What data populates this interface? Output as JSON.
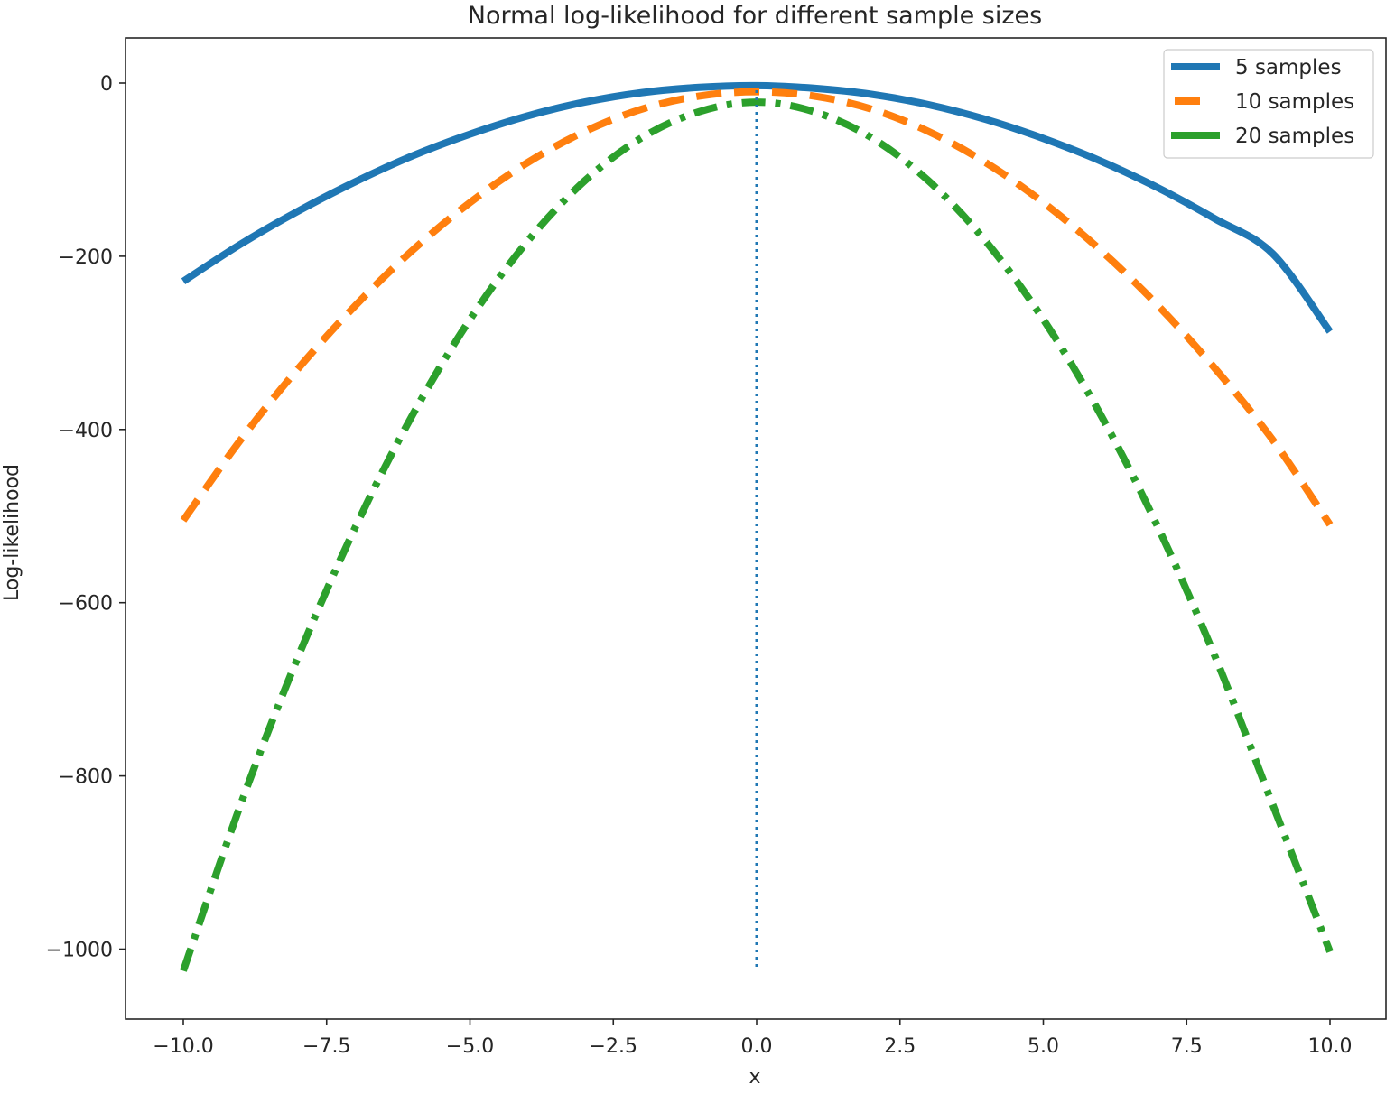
{
  "chart_data": {
    "type": "line",
    "title": "Normal log-likelihood for different sample sizes",
    "xlabel": "x",
    "ylabel": "Log-likelihood",
    "xlim": [
      -11,
      11
    ],
    "ylim": [
      -1080,
      50
    ],
    "xticks": [
      -10.0,
      -7.5,
      -5.0,
      -2.5,
      0.0,
      2.5,
      5.0,
      7.5,
      10.0
    ],
    "xtick_labels": [
      "−10.0",
      "−7.5",
      "−5.0",
      "−2.5",
      "0.0",
      "2.5",
      "5.0",
      "7.5",
      "10.0"
    ],
    "yticks": [
      0,
      -200,
      -400,
      -600,
      -800,
      -1000
    ],
    "ytick_labels": [
      "0",
      "−200",
      "−400",
      "−600",
      "−800",
      "−1000"
    ],
    "grid": false,
    "legend_position": "top-right",
    "x": [
      -10,
      -9,
      -8,
      -7,
      -6,
      -5,
      -4,
      -3,
      -2,
      -1,
      0,
      1,
      2,
      3,
      4,
      5,
      6,
      7,
      8,
      9,
      10
    ],
    "series": [
      {
        "name": "5 samples",
        "color": "#1f77b4",
        "linestyle": "solid",
        "values": [
          -229,
          -186,
          -148,
          -114,
          -84,
          -59,
          -38,
          -22,
          -11,
          -5,
          -3,
          -6,
          -13,
          -25,
          -42,
          -64,
          -90,
          -121,
          -157,
          -197,
          -287
        ]
      },
      {
        "name": "10 samples",
        "color": "#ff7f0e",
        "linestyle": "dashed",
        "values": [
          -505,
          -412,
          -330,
          -257,
          -193,
          -138,
          -92,
          -56,
          -30,
          -15,
          -10,
          -15,
          -30,
          -56,
          -92,
          -138,
          -193,
          -257,
          -330,
          -412,
          -510
        ]
      },
      {
        "name": "20 samples",
        "color": "#2ca02c",
        "linestyle": "dashdot",
        "values": [
          -1025,
          -833,
          -663,
          -513,
          -383,
          -273,
          -183,
          -113,
          -63,
          -33,
          -22,
          -33,
          -63,
          -113,
          -183,
          -273,
          -383,
          -513,
          -663,
          -833,
          -1003
        ]
      }
    ],
    "vertical_line": {
      "x": 0,
      "y_range": [
        -1025,
        0
      ],
      "color": "#1f77b4",
      "linestyle": "dotted"
    }
  }
}
